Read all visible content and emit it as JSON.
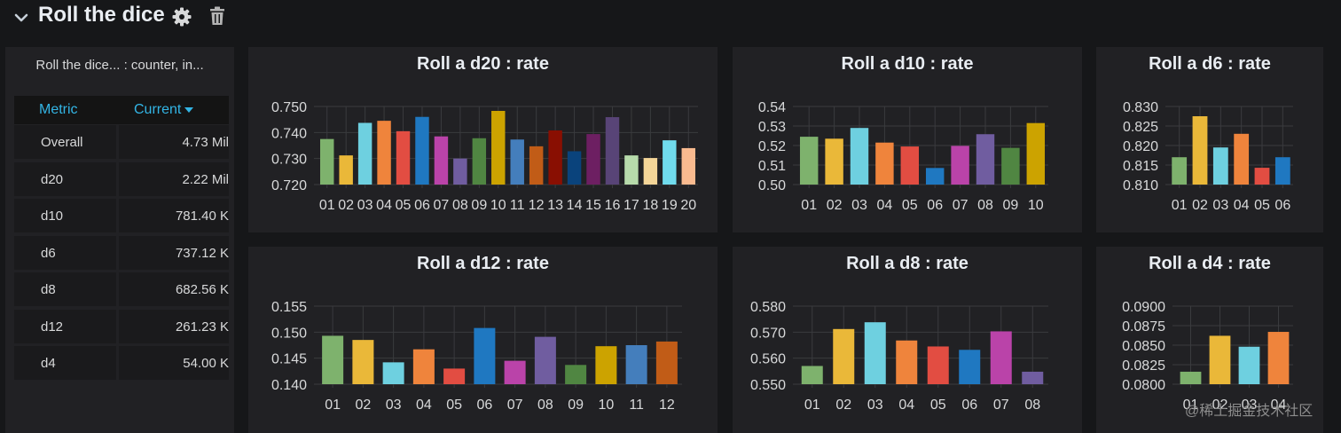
{
  "row": {
    "title": "Roll the dice"
  },
  "table": {
    "title": "Roll the dice... : counter, in...",
    "header": {
      "metric": "Metric",
      "current": "Current"
    },
    "rows": [
      {
        "name": "Overall",
        "value": "4.73 Mil"
      },
      {
        "name": "d20",
        "value": "2.22 Mil"
      },
      {
        "name": "d10",
        "value": "781.40 K"
      },
      {
        "name": "d6",
        "value": "737.12 K"
      },
      {
        "name": "d8",
        "value": "682.56 K"
      },
      {
        "name": "d12",
        "value": "261.23 K"
      },
      {
        "name": "d4",
        "value": "54.00 K"
      }
    ]
  },
  "palette": [
    "#7eb26d",
    "#eab839",
    "#6ed0e0",
    "#ef843c",
    "#e24d42",
    "#1f78c1",
    "#ba43a9",
    "#705da0",
    "#508642",
    "#cca300",
    "#447ebc",
    "#c15c17",
    "#890f02",
    "#0a437c",
    "#6d1f62",
    "#584477",
    "#b7dbab",
    "#f4d598",
    "#70dbed",
    "#f9ba8f"
  ],
  "chart_data": [
    {
      "id": "d20",
      "type": "bar",
      "title": "Roll a d20 : rate",
      "categories": [
        "01",
        "02",
        "03",
        "04",
        "05",
        "06",
        "07",
        "08",
        "09",
        "10",
        "11",
        "12",
        "13",
        "14",
        "15",
        "16",
        "17",
        "18",
        "19",
        "20"
      ],
      "values": [
        0.7375,
        0.7312,
        0.7437,
        0.7445,
        0.7405,
        0.746,
        0.7385,
        0.73,
        0.7378,
        0.7483,
        0.7373,
        0.7347,
        0.7408,
        0.7328,
        0.7394,
        0.7459,
        0.7312,
        0.7302,
        0.737,
        0.734
      ],
      "ylim": [
        0.72,
        0.75
      ],
      "yticks": [
        "0.750",
        "0.740",
        "0.730",
        "0.720"
      ]
    },
    {
      "id": "d10",
      "type": "bar",
      "title": "Roll a d10 : rate",
      "categories": [
        "01",
        "02",
        "03",
        "04",
        "05",
        "06",
        "07",
        "08",
        "09",
        "10"
      ],
      "values": [
        0.5245,
        0.5235,
        0.529,
        0.5215,
        0.5195,
        0.5085,
        0.5198,
        0.5258,
        0.5188,
        0.5315
      ],
      "ylim": [
        0.5,
        0.54
      ],
      "yticks": [
        "0.54",
        "0.53",
        "0.52",
        "0.51",
        "0.50"
      ]
    },
    {
      "id": "d6",
      "type": "bar",
      "title": "Roll a d6 : rate",
      "categories": [
        "01",
        "02",
        "03",
        "04",
        "05",
        "06"
      ],
      "values": [
        0.817,
        0.8275,
        0.8195,
        0.823,
        0.8143,
        0.817
      ],
      "ylim": [
        0.81,
        0.83
      ],
      "yticks": [
        "0.830",
        "0.825",
        "0.820",
        "0.815",
        "0.810"
      ]
    },
    {
      "id": "d12",
      "type": "bar",
      "title": "Roll a d12 : rate",
      "categories": [
        "01",
        "02",
        "03",
        "04",
        "05",
        "06",
        "07",
        "08",
        "09",
        "10",
        "11",
        "12"
      ],
      "values": [
        0.1493,
        0.1485,
        0.1442,
        0.1467,
        0.143,
        0.1508,
        0.1445,
        0.1491,
        0.1437,
        0.1473,
        0.1475,
        0.1482
      ],
      "ylim": [
        0.14,
        0.155
      ],
      "yticks": [
        "0.155",
        "0.150",
        "0.145",
        "0.140"
      ]
    },
    {
      "id": "d8",
      "type": "bar",
      "title": "Roll a d8 : rate",
      "categories": [
        "01",
        "02",
        "03",
        "04",
        "05",
        "06",
        "07",
        "08"
      ],
      "values": [
        0.557,
        0.5712,
        0.5738,
        0.5668,
        0.5645,
        0.5632,
        0.5703,
        0.5548
      ],
      "ylim": [
        0.55,
        0.58
      ],
      "yticks": [
        "0.580",
        "0.570",
        "0.560",
        "0.550"
      ]
    },
    {
      "id": "d4",
      "type": "bar",
      "title": "Roll a d4 : rate",
      "categories": [
        "01",
        "02",
        "03",
        "04"
      ],
      "values": [
        0.0816,
        0.0862,
        0.0848,
        0.0867
      ],
      "ylim": [
        0.08,
        0.09
      ],
      "yticks": [
        "0.0900",
        "0.0875",
        "0.0850",
        "0.0825",
        "0.0800"
      ]
    }
  ],
  "watermark": "@稀土掘金技术社区"
}
